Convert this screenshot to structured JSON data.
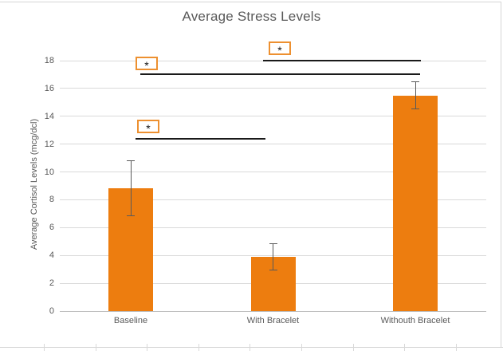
{
  "chart_data": {
    "type": "bar",
    "title": "Average Stress Levels",
    "ylabel": "Average Cortisol Levels (mcg/dcl)",
    "xlabel": "",
    "categories": [
      "Baseline",
      "With Bracelet",
      "Withouth Bracelet"
    ],
    "values": [
      8.85,
      3.9,
      15.5
    ],
    "error_bars": [
      2.0,
      1.0,
      1.0
    ],
    "ylim": [
      0,
      18
    ],
    "yticks": [
      0,
      2,
      4,
      6,
      8,
      10,
      12,
      14,
      16,
      18
    ],
    "grid": "horizontal",
    "legend": "none",
    "annotations": [
      {
        "marker": "*",
        "compare": [
          "With Bracelet",
          "Withouth Bracelet"
        ],
        "line_y": 18.0,
        "line_x1": 330,
        "line_x2": 528,
        "box_x": 337,
        "box_y": 52
      },
      {
        "marker": "*",
        "compare": [
          "Baseline",
          "Withouth Bracelet"
        ],
        "line_y": 17.0,
        "line_x1": 176,
        "line_x2": 527,
        "box_x": 170,
        "box_y": 71
      },
      {
        "marker": "*",
        "compare": [
          "Baseline",
          "With Bracelet"
        ],
        "line_y": 12.4,
        "line_x1": 170,
        "line_x2": 333,
        "box_x": 172,
        "box_y": 150
      }
    ],
    "colors": {
      "bar": "#ED7D0F",
      "grid": "#D9D9D9",
      "axis": "#BFBFBF",
      "text": "#595959",
      "error_bar": "#595959",
      "annotation_line": "#1A1A1A",
      "annotation_box_border": "#ED9030",
      "chart_border": "#D6D6D6"
    }
  }
}
